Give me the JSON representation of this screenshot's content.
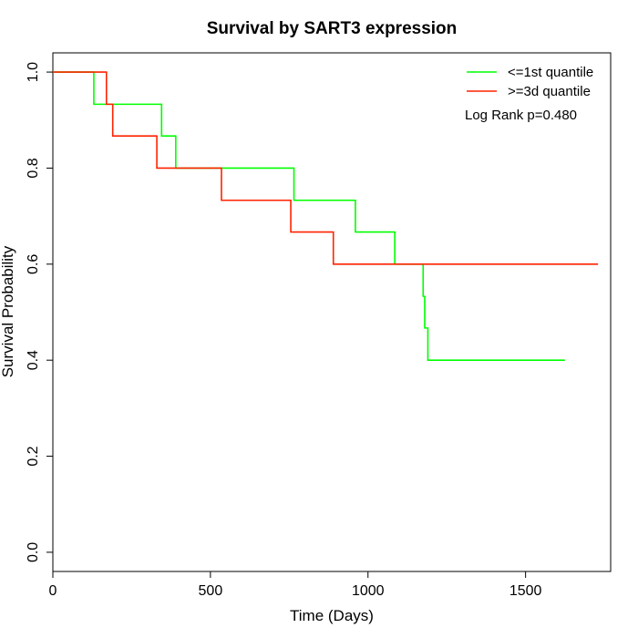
{
  "chart_data": {
    "type": "line",
    "subtype": "step",
    "title": "Survival by SART3 expression",
    "xlabel": "Time (Days)",
    "ylabel": "Survival Probability",
    "xlim": [
      0,
      1770
    ],
    "ylim": [
      -0.04,
      1.04
    ],
    "xticks": [
      0,
      500,
      1000,
      1500
    ],
    "yticks": [
      0.0,
      0.2,
      0.4,
      0.6,
      0.8,
      1.0
    ],
    "xtick_labels": [
      "0",
      "500",
      "1000",
      "1500"
    ],
    "ytick_labels": [
      "0.0",
      "0.2",
      "0.4",
      "0.6",
      "0.8",
      "1.0"
    ],
    "grid": false,
    "legend_position": "top-right",
    "annotation": "Log Rank p=0.480",
    "series": [
      {
        "name": "<=1st quantile",
        "color": "#00ff00",
        "x": [
          0,
          130,
          345,
          390,
          765,
          960,
          1085,
          1175,
          1180,
          1190,
          1625
        ],
        "y": [
          1.0,
          0.933,
          0.867,
          0.8,
          0.733,
          0.667,
          0.6,
          0.533,
          0.467,
          0.4,
          0.4
        ]
      },
      {
        "name": ">=3d quantile",
        "color": "#ff2200",
        "x": [
          0,
          170,
          190,
          330,
          535,
          755,
          890,
          1730
        ],
        "y": [
          1.0,
          0.933,
          0.867,
          0.8,
          0.733,
          0.667,
          0.6,
          0.6
        ]
      }
    ]
  }
}
